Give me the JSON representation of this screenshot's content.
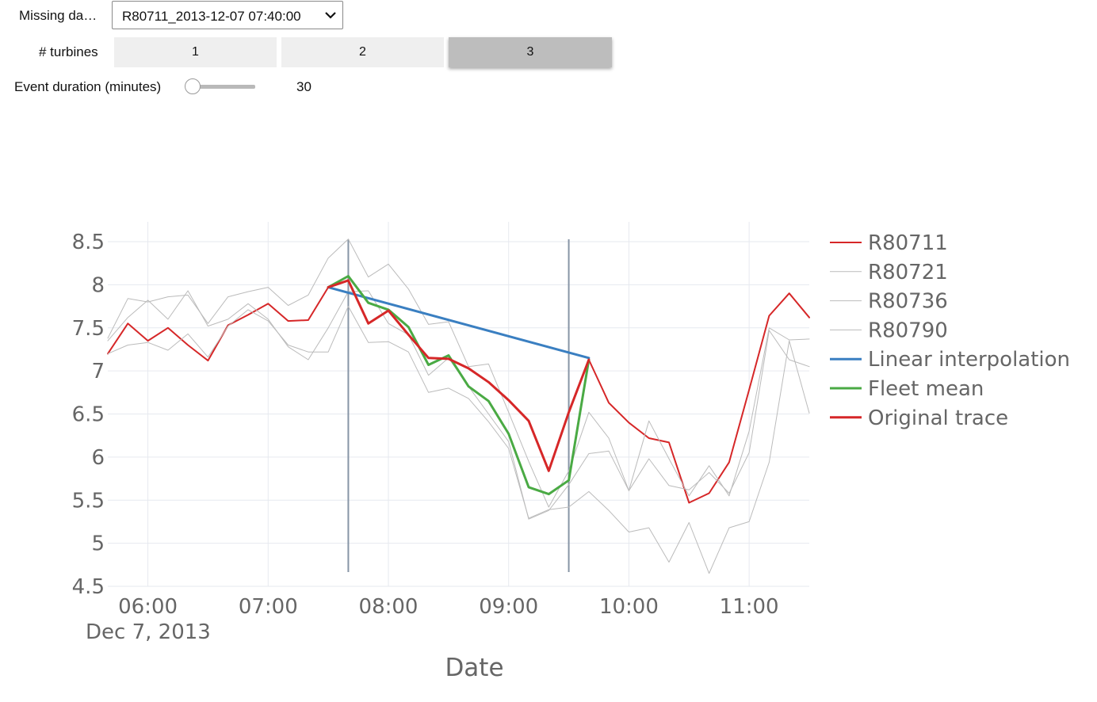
{
  "controls": {
    "missing_label": "Missing da…",
    "missing_value": "R80711_2013-12-07 07:40:00",
    "turbines_label": "# turbines",
    "turbine_options": [
      "1",
      "2",
      "3"
    ],
    "turbines_selected": "3",
    "duration_label": "Event duration (minutes)",
    "duration_value": "30",
    "duration_fraction": 0.0
  },
  "chart_data": {
    "type": "line",
    "xlabel": "Date",
    "date_label": "Dec 7, 2013",
    "x_ticks": [
      "06:00",
      "07:00",
      "08:00",
      "09:00",
      "10:00",
      "11:00"
    ],
    "y_ticks": [
      "4.5",
      "5",
      "5.5",
      "6",
      "6.5",
      "7",
      "7.5",
      "8",
      "8.5"
    ],
    "xlim": [
      "05:40",
      "11:30"
    ],
    "ylim": [
      4.5,
      8.5
    ],
    "grid": true,
    "legend_position": "right",
    "event_lines": [
      "07:40",
      "09:30"
    ],
    "x": [
      "05:40",
      "05:50",
      "06:00",
      "06:10",
      "06:20",
      "06:30",
      "06:40",
      "06:50",
      "07:00",
      "07:10",
      "07:20",
      "07:30",
      "07:40",
      "07:50",
      "08:00",
      "08:10",
      "08:20",
      "08:30",
      "08:40",
      "08:50",
      "09:00",
      "09:10",
      "09:20",
      "09:30",
      "09:40",
      "09:50",
      "10:00",
      "10:10",
      "10:20",
      "10:30",
      "10:40",
      "10:50",
      "11:00",
      "11:10",
      "11:20",
      "11:30"
    ],
    "series": [
      {
        "name": "R80711",
        "color": "#d62728",
        "width": 2,
        "x": [
          "05:40",
          "05:50",
          "06:00",
          "06:10",
          "06:20",
          "06:30",
          "06:40",
          "06:50",
          "07:00",
          "07:10",
          "07:20",
          "07:30",
          "07:40",
          "07:50",
          "08:00",
          "08:10",
          "08:20",
          "08:30",
          "08:40",
          "08:50",
          "09:00",
          "09:10",
          "09:20",
          "09:30",
          "09:40",
          "09:50",
          "10:00",
          "10:10",
          "10:20",
          "10:30",
          "10:40",
          "10:50",
          "11:00",
          "11:10",
          "11:20",
          "11:30"
        ],
        "values": [
          7.2,
          7.55,
          7.35,
          7.5,
          7.3,
          7.12,
          7.53,
          7.65,
          7.78,
          7.58,
          7.59,
          7.97,
          8.05,
          7.55,
          7.7,
          7.42,
          7.15,
          7.14,
          7.03,
          6.87,
          6.66,
          6.42,
          5.84,
          6.52,
          7.13,
          6.63,
          6.4,
          6.22,
          6.17,
          5.47,
          5.58,
          5.94,
          6.78,
          7.64,
          7.9,
          7.62
        ]
      },
      {
        "name": "R80721",
        "color": "#bbbbbb",
        "width": 1,
        "x": [
          "05:40",
          "05:50",
          "06:00",
          "06:10",
          "06:20",
          "06:30",
          "06:40",
          "06:50",
          "07:00",
          "07:10",
          "07:20",
          "07:30",
          "07:40",
          "07:50",
          "08:00",
          "08:10",
          "08:20",
          "08:30",
          "08:40",
          "08:50",
          "09:00",
          "09:10",
          "09:20",
          "09:30",
          "09:40",
          "09:50",
          "10:00",
          "10:10",
          "10:20",
          "10:30",
          "10:40",
          "10:50",
          "11:00",
          "11:10",
          "11:20",
          "11:30"
        ],
        "values": [
          7.38,
          7.84,
          7.8,
          7.86,
          7.88,
          7.55,
          7.86,
          7.92,
          7.97,
          7.76,
          7.88,
          8.31,
          8.53,
          8.09,
          8.24,
          7.95,
          7.54,
          7.57,
          7.05,
          7.08,
          6.52,
          5.95,
          5.42,
          5.84,
          6.52,
          6.22,
          5.61,
          6.42,
          5.98,
          5.55,
          5.9,
          5.55,
          6.3,
          7.5,
          7.36,
          7.37
        ]
      },
      {
        "name": "R80736",
        "color": "#bbbbbb",
        "width": 1,
        "x": [
          "05:40",
          "05:50",
          "06:00",
          "06:10",
          "06:20",
          "06:30",
          "06:40",
          "06:50",
          "07:00",
          "07:10",
          "07:20",
          "07:30",
          "07:40",
          "07:50",
          "08:00",
          "08:10",
          "08:20",
          "08:30",
          "08:40",
          "08:50",
          "09:00",
          "09:10",
          "09:20",
          "09:30",
          "09:40",
          "09:50",
          "10:00",
          "10:10",
          "10:20",
          "10:30",
          "10:40",
          "10:50",
          "11:00",
          "11:10",
          "11:20",
          "11:30"
        ],
        "values": [
          7.35,
          7.62,
          7.82,
          7.6,
          7.93,
          7.52,
          7.6,
          7.78,
          7.6,
          7.28,
          7.13,
          7.5,
          7.92,
          7.93,
          7.55,
          7.42,
          6.95,
          7.15,
          6.82,
          6.5,
          6.18,
          5.28,
          5.38,
          5.68,
          6.04,
          6.07,
          5.61,
          5.98,
          5.67,
          5.62,
          5.82,
          5.58,
          6.05,
          7.47,
          7.13,
          7.05
        ]
      },
      {
        "name": "R80790",
        "color": "#bbbbbb",
        "width": 1,
        "x": [
          "05:40",
          "05:50",
          "06:00",
          "06:10",
          "06:20",
          "06:30",
          "06:40",
          "06:50",
          "07:00",
          "07:10",
          "07:20",
          "07:30",
          "07:40",
          "07:50",
          "08:00",
          "08:10",
          "08:20",
          "08:30",
          "08:40",
          "08:50",
          "09:00",
          "09:10",
          "09:20",
          "09:30",
          "09:40",
          "09:50",
          "10:00",
          "10:10",
          "10:20",
          "10:30",
          "10:40",
          "10:50",
          "11:00",
          "11:10",
          "11:20",
          "11:30"
        ],
        "values": [
          7.2,
          7.3,
          7.33,
          7.24,
          7.43,
          7.16,
          7.52,
          7.71,
          7.58,
          7.3,
          7.22,
          7.22,
          7.75,
          7.33,
          7.34,
          7.22,
          6.75,
          6.8,
          6.68,
          6.41,
          6.1,
          5.29,
          5.39,
          5.42,
          5.6,
          5.38,
          5.13,
          5.18,
          4.78,
          5.24,
          4.65,
          5.18,
          5.25,
          5.94,
          7.35,
          6.51
        ]
      },
      {
        "name": "Linear interpolation",
        "color": "#3a7fc1",
        "width": 3,
        "x": [
          "07:30",
          "09:40"
        ],
        "values": [
          7.97,
          7.15
        ]
      },
      {
        "name": "Fleet mean",
        "color": "#4aaa44",
        "width": 3,
        "x": [
          "07:30",
          "07:40",
          "07:50",
          "08:00",
          "08:10",
          "08:20",
          "08:30",
          "08:40",
          "08:50",
          "09:00",
          "09:10",
          "09:20",
          "09:30",
          "09:40"
        ],
        "values": [
          7.97,
          8.1,
          7.79,
          7.71,
          7.51,
          7.07,
          7.18,
          6.82,
          6.65,
          6.27,
          5.65,
          5.57,
          5.73,
          7.13
        ]
      },
      {
        "name": "Original trace",
        "color": "#d62728",
        "width": 3,
        "x": [
          "07:30",
          "07:40",
          "07:50",
          "08:00",
          "08:10",
          "08:20",
          "08:30",
          "08:40",
          "08:50",
          "09:00",
          "09:10",
          "09:20",
          "09:30",
          "09:40"
        ],
        "values": [
          7.97,
          8.05,
          7.55,
          7.7,
          7.42,
          7.15,
          7.14,
          7.03,
          6.87,
          6.66,
          6.42,
          5.84,
          6.52,
          7.13
        ]
      }
    ]
  }
}
